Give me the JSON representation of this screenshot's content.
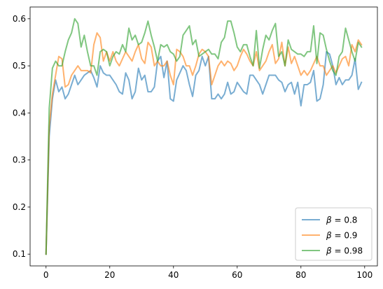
{
  "chart_data": {
    "type": "line",
    "title": "",
    "xlabel": "",
    "ylabel": "",
    "xlim": [
      -5,
      104
    ],
    "ylim": [
      0.075,
      0.625
    ],
    "xticks": [
      0,
      20,
      40,
      60,
      80,
      100
    ],
    "yticks": [
      0.1,
      0.2,
      0.3,
      0.4,
      0.5,
      0.6
    ],
    "xtick_labels": [
      "0",
      "20",
      "40",
      "60",
      "80",
      "100"
    ],
    "ytick_labels": [
      "0.1",
      "0.2",
      "0.3",
      "0.4",
      "0.5",
      "0.6"
    ],
    "grid": false,
    "legend_position": "lower-right",
    "series": [
      {
        "name": "β = 0.8",
        "label_symbol": "β",
        "label_value": "= 0.8",
        "color": "#1f77b4",
        "values": [
          0.1,
          0.35,
          0.43,
          0.47,
          0.445,
          0.455,
          0.43,
          0.44,
          0.46,
          0.48,
          0.46,
          0.47,
          0.48,
          0.485,
          0.49,
          0.475,
          0.455,
          0.5,
          0.485,
          0.48,
          0.48,
          0.47,
          0.46,
          0.445,
          0.44,
          0.485,
          0.47,
          0.43,
          0.445,
          0.495,
          0.47,
          0.48,
          0.445,
          0.445,
          0.455,
          0.51,
          0.52,
          0.475,
          0.51,
          0.43,
          0.425,
          0.47,
          0.485,
          0.5,
          0.49,
          0.46,
          0.435,
          0.48,
          0.49,
          0.52,
          0.5,
          0.52,
          0.43,
          0.43,
          0.44,
          0.43,
          0.44,
          0.465,
          0.44,
          0.445,
          0.465,
          0.455,
          0.445,
          0.44,
          0.48,
          0.48,
          0.47,
          0.46,
          0.44,
          0.46,
          0.48,
          0.48,
          0.48,
          0.47,
          0.465,
          0.445,
          0.46,
          0.465,
          0.44,
          0.465,
          0.415,
          0.46,
          0.46,
          0.465,
          0.49,
          0.425,
          0.43,
          0.46,
          0.53,
          0.525,
          0.5,
          0.46,
          0.475,
          0.46,
          0.47,
          0.47,
          0.48,
          0.515,
          0.45,
          0.465
        ]
      },
      {
        "name": "β = 0.9",
        "label_symbol": "β",
        "label_value": "= 0.9",
        "color": "#ff7f0e",
        "values": [
          0.1,
          0.37,
          0.44,
          0.48,
          0.52,
          0.515,
          0.455,
          0.46,
          0.48,
          0.49,
          0.5,
          0.49,
          0.49,
          0.49,
          0.485,
          0.545,
          0.57,
          0.56,
          0.51,
          0.53,
          0.51,
          0.53,
          0.51,
          0.5,
          0.515,
          0.53,
          0.52,
          0.51,
          0.53,
          0.545,
          0.515,
          0.505,
          0.55,
          0.54,
          0.5,
          0.51,
          0.5,
          0.5,
          0.51,
          0.48,
          0.46,
          0.535,
          0.53,
          0.52,
          0.5,
          0.5,
          0.48,
          0.5,
          0.525,
          0.535,
          0.53,
          0.52,
          0.46,
          0.48,
          0.5,
          0.51,
          0.5,
          0.51,
          0.505,
          0.49,
          0.5,
          0.52,
          0.535,
          0.525,
          0.51,
          0.5,
          0.53,
          0.49,
          0.5,
          0.51,
          0.53,
          0.545,
          0.505,
          0.515,
          0.55,
          0.5,
          0.54,
          0.505,
          0.52,
          0.5,
          0.48,
          0.49,
          0.48,
          0.49,
          0.505,
          0.52,
          0.5,
          0.5,
          0.48,
          0.49,
          0.5,
          0.485,
          0.5,
          0.515,
          0.52,
          0.5,
          0.545,
          0.53,
          0.555,
          0.545
        ]
      },
      {
        "name": "β = 0.98",
        "label_symbol": "β",
        "label_value": "= 0.98",
        "color": "#2ca02c",
        "values": [
          0.1,
          0.41,
          0.495,
          0.51,
          0.5,
          0.5,
          0.53,
          0.555,
          0.57,
          0.6,
          0.59,
          0.54,
          0.565,
          0.53,
          0.5,
          0.5,
          0.48,
          0.53,
          0.535,
          0.53,
          0.5,
          0.52,
          0.53,
          0.525,
          0.545,
          0.53,
          0.58,
          0.555,
          0.565,
          0.545,
          0.55,
          0.57,
          0.595,
          0.565,
          0.54,
          0.51,
          0.545,
          0.54,
          0.545,
          0.53,
          0.525,
          0.51,
          0.52,
          0.565,
          0.575,
          0.585,
          0.545,
          0.555,
          0.52,
          0.525,
          0.53,
          0.535,
          0.525,
          0.525,
          0.515,
          0.55,
          0.56,
          0.595,
          0.595,
          0.57,
          0.54,
          0.53,
          0.545,
          0.545,
          0.52,
          0.5,
          0.575,
          0.495,
          0.535,
          0.565,
          0.555,
          0.575,
          0.59,
          0.52,
          0.53,
          0.5,
          0.555,
          0.535,
          0.53,
          0.525,
          0.525,
          0.52,
          0.53,
          0.53,
          0.585,
          0.505,
          0.57,
          0.565,
          0.535,
          0.51,
          0.49,
          0.48,
          0.52,
          0.53,
          0.58,
          0.555,
          0.53,
          0.51,
          0.55,
          0.54
        ]
      }
    ]
  }
}
